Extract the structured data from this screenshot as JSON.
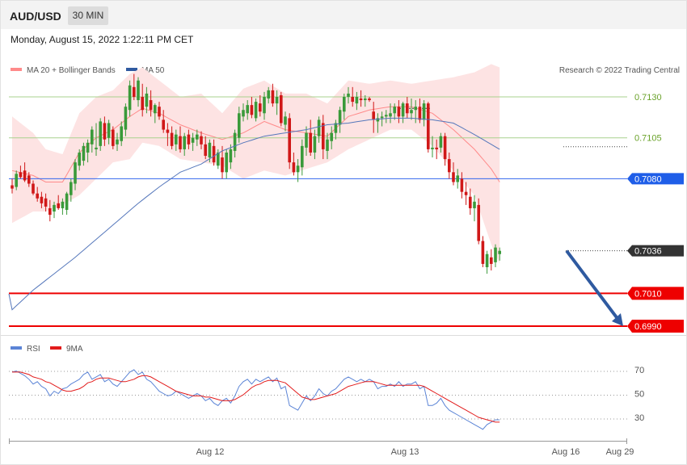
{
  "header": {
    "symbol": "AUD/USD",
    "timeframe": "30 MIN",
    "datetime": "Monday, August 15, 2022 1:22:11 PM CET"
  },
  "legend": {
    "bb": "MA 20 + Bollinger Bands",
    "ma50": "MA 50",
    "rsi": "RSI",
    "ma9": "9MA",
    "credit": "Research © 2022 Trading Central"
  },
  "colors": {
    "bb": "#ff8a8a",
    "bbfill": "#fde3e3",
    "ma50": "#5577bb",
    "up": "#3a9a3a",
    "down": "#d01818",
    "resistance": "#a9d18e",
    "pivot": "#3366ee",
    "support": "#ee0000",
    "arrow": "#2f5aa0",
    "rsi": "#5b84d6",
    "rsima": "#e21b1b"
  },
  "chart_data": {
    "type": "candlestick",
    "title": "AUD/USD 30 MIN",
    "x_ticks": [
      "Aug 12",
      "Aug 13",
      "Aug 16",
      "Aug 29"
    ],
    "y_range": [
      6979,
      7157
    ],
    "levels": [
      {
        "value": 0.713,
        "label": "0.7130",
        "kind": "resistance"
      },
      {
        "value": 0.7105,
        "label": "0.7105",
        "kind": "resistance"
      },
      {
        "value": 0.708,
        "label": "0.7080",
        "kind": "pivot"
      },
      {
        "value": 0.7036,
        "label": "0.7036",
        "kind": "last"
      },
      {
        "value": 0.701,
        "label": "0.7010",
        "kind": "support"
      },
      {
        "value": 0.699,
        "label": "0.6990",
        "kind": "support"
      }
    ],
    "forecast": {
      "from": 0.7036,
      "to": 0.699
    },
    "ohlc": [
      [
        7076,
        7080,
        7071,
        7074
      ],
      [
        7075,
        7085,
        7073,
        7083
      ],
      [
        7084,
        7088,
        7080,
        7081
      ],
      [
        7085,
        7090,
        7078,
        7079
      ],
      [
        7082,
        7084,
        7075,
        7077
      ],
      [
        7077,
        7079,
        7070,
        7071
      ],
      [
        7071,
        7075,
        7066,
        7068
      ],
      [
        7069,
        7072,
        7062,
        7065
      ],
      [
        7068,
        7071,
        7060,
        7063
      ],
      [
        7062,
        7067,
        7054,
        7058
      ],
      [
        7060,
        7066,
        7056,
        7064
      ],
      [
        7065,
        7070,
        7061,
        7062
      ],
      [
        7062,
        7068,
        7058,
        7066
      ],
      [
        7061,
        7072,
        7058,
        7071
      ],
      [
        7070,
        7080,
        7066,
        7078
      ],
      [
        7077,
        7092,
        7073,
        7090
      ],
      [
        7088,
        7098,
        7085,
        7096
      ],
      [
        7091,
        7102,
        7088,
        7100
      ],
      [
        7096,
        7104,
        7090,
        7102
      ],
      [
        7101,
        7112,
        7096,
        7110
      ],
      [
        7098,
        7114,
        7094,
        7099
      ],
      [
        7100,
        7117,
        7097,
        7115
      ],
      [
        7114,
        7118,
        7100,
        7104
      ],
      [
        7105,
        7116,
        7101,
        7114
      ],
      [
        7110,
        7112,
        7098,
        7100
      ],
      [
        7101,
        7108,
        7097,
        7104
      ],
      [
        7103,
        7115,
        7100,
        7112
      ],
      [
        7110,
        7126,
        7106,
        7124
      ],
      [
        7122,
        7140,
        7118,
        7137
      ],
      [
        7136,
        7144,
        7128,
        7130
      ],
      [
        7128,
        7142,
        7124,
        7140
      ],
      [
        7130,
        7138,
        7118,
        7122
      ],
      [
        7124,
        7136,
        7120,
        7132
      ],
      [
        7128,
        7134,
        7118,
        7122
      ],
      [
        7120,
        7126,
        7114,
        7125
      ],
      [
        7124,
        7127,
        7116,
        7118
      ],
      [
        7116,
        7122,
        7108,
        7110
      ],
      [
        7110,
        7114,
        7100,
        7108
      ],
      [
        7108,
        7112,
        7098,
        7100
      ],
      [
        7101,
        7110,
        7097,
        7107
      ],
      [
        7106,
        7112,
        7096,
        7098
      ],
      [
        7098,
        7108,
        7094,
        7106
      ],
      [
        7107,
        7110,
        7098,
        7101
      ],
      [
        7102,
        7108,
        7097,
        7105
      ],
      [
        7104,
        7110,
        7100,
        7107
      ],
      [
        7106,
        7109,
        7098,
        7101
      ],
      [
        7101,
        7106,
        7092,
        7094
      ],
      [
        7093,
        7104,
        7090,
        7102
      ],
      [
        7100,
        7104,
        7088,
        7090
      ],
      [
        7088,
        7098,
        7086,
        7096
      ],
      [
        7093,
        7100,
        7080,
        7084
      ],
      [
        7084,
        7098,
        7080,
        7096
      ],
      [
        7090,
        7101,
        7086,
        7098
      ],
      [
        7097,
        7110,
        7093,
        7108
      ],
      [
        7105,
        7124,
        7102,
        7120
      ],
      [
        7118,
        7126,
        7115,
        7122
      ],
      [
        7120,
        7128,
        7116,
        7125
      ],
      [
        7125,
        7130,
        7117,
        7119
      ],
      [
        7117,
        7129,
        7115,
        7127
      ],
      [
        7126,
        7131,
        7118,
        7121
      ],
      [
        7120,
        7133,
        7116,
        7130
      ],
      [
        7129,
        7136,
        7126,
        7134
      ],
      [
        7134,
        7138,
        7124,
        7126
      ],
      [
        7126,
        7134,
        7119,
        7130
      ],
      [
        7131,
        7133,
        7112,
        7114
      ],
      [
        7113,
        7121,
        7109,
        7118
      ],
      [
        7117,
        7120,
        7086,
        7090
      ],
      [
        7090,
        7096,
        7082,
        7084
      ],
      [
        7084,
        7092,
        7078,
        7088
      ],
      [
        7087,
        7104,
        7082,
        7100
      ],
      [
        7099,
        7112,
        7094,
        7108
      ],
      [
        7108,
        7116,
        7094,
        7096
      ],
      [
        7096,
        7110,
        7092,
        7106
      ],
      [
        7106,
        7118,
        7102,
        7116
      ],
      [
        7114,
        7119,
        7092,
        7098
      ],
      [
        7097,
        7108,
        7092,
        7104
      ],
      [
        7103,
        7112,
        7098,
        7108
      ],
      [
        7108,
        7116,
        7104,
        7114
      ],
      [
        7113,
        7124,
        7108,
        7122
      ],
      [
        7121,
        7132,
        7116,
        7130
      ],
      [
        7130,
        7136,
        7126,
        7132
      ],
      [
        7130,
        7136,
        7124,
        7127
      ],
      [
        7126,
        7133,
        7122,
        7130
      ],
      [
        7129,
        7134,
        7124,
        7128
      ],
      [
        7128,
        7131,
        7124,
        7129
      ],
      [
        7129,
        7130,
        7127,
        7128
      ],
      [
        7121,
        7127,
        7108,
        7116
      ],
      [
        7115,
        7120,
        7108,
        7117
      ],
      [
        7117,
        7121,
        7112,
        7118
      ],
      [
        7118,
        7122,
        7114,
        7119
      ],
      [
        7118,
        7126,
        7114,
        7120
      ],
      [
        7120,
        7126,
        7116,
        7124
      ],
      [
        7124,
        7128,
        7114,
        7118
      ],
      [
        7118,
        7127,
        7114,
        7126
      ],
      [
        7126,
        7130,
        7117,
        7120
      ],
      [
        7120,
        7129,
        7116,
        7122
      ],
      [
        7122,
        7128,
        7114,
        7124
      ],
      [
        7124,
        7129,
        7114,
        7116
      ],
      [
        7116,
        7128,
        7112,
        7126
      ],
      [
        7126,
        7127,
        7096,
        7098
      ],
      [
        7098,
        7106,
        7093,
        7099
      ],
      [
        7099,
        7104,
        7092,
        7098
      ],
      [
        7099,
        7108,
        7096,
        7106
      ],
      [
        7106,
        7108,
        7088,
        7092
      ],
      [
        7092,
        7096,
        7080,
        7084
      ],
      [
        7084,
        7090,
        7076,
        7078
      ],
      [
        7078,
        7086,
        7074,
        7082
      ],
      [
        7080,
        7084,
        7068,
        7072
      ],
      [
        7072,
        7078,
        7064,
        7070
      ],
      [
        7069,
        7074,
        7058,
        7062
      ],
      [
        7062,
        7070,
        7054,
        7066
      ],
      [
        7064,
        7068,
        7040,
        7042
      ],
      [
        7042,
        7045,
        7026,
        7028
      ],
      [
        7026,
        7036,
        7022,
        7034
      ],
      [
        7032,
        7037,
        7024,
        7028
      ],
      [
        7029,
        7040,
        7026,
        7038
      ],
      [
        7034,
        7038,
        7030,
        7036
      ]
    ],
    "ma50_anchors": [
      [
        0,
        7000
      ],
      [
        5,
        7012
      ],
      [
        10,
        7022
      ],
      [
        15,
        7032
      ],
      [
        20,
        7043
      ],
      [
        25,
        7054
      ],
      [
        30,
        7065
      ],
      [
        35,
        7075
      ],
      [
        40,
        7084
      ],
      [
        45,
        7089
      ],
      [
        50,
        7097
      ],
      [
        55,
        7102
      ],
      [
        60,
        7106
      ],
      [
        65,
        7108
      ],
      [
        70,
        7110
      ],
      [
        75,
        7113
      ],
      [
        80,
        7114
      ],
      [
        85,
        7116
      ],
      [
        90,
        7117
      ],
      [
        95,
        7117
      ],
      [
        100,
        7116
      ],
      [
        105,
        7114
      ],
      [
        110,
        7107
      ],
      [
        116,
        7098
      ]
    ],
    "bb_upper_anchors": [
      [
        0,
        7118
      ],
      [
        5,
        7108
      ],
      [
        8,
        7098
      ],
      [
        12,
        7095
      ],
      [
        16,
        7120
      ],
      [
        20,
        7130
      ],
      [
        24,
        7134
      ],
      [
        28,
        7144
      ],
      [
        31,
        7148
      ],
      [
        35,
        7140
      ],
      [
        40,
        7130
      ],
      [
        45,
        7132
      ],
      [
        50,
        7120
      ],
      [
        55,
        7135
      ],
      [
        60,
        7140
      ],
      [
        65,
        7132
      ],
      [
        70,
        7132
      ],
      [
        75,
        7126
      ],
      [
        80,
        7140
      ],
      [
        85,
        7138
      ],
      [
        90,
        7140
      ],
      [
        95,
        7138
      ],
      [
        100,
        7140
      ],
      [
        105,
        7142
      ],
      [
        110,
        7145
      ],
      [
        114,
        7150
      ],
      [
        116,
        7148
      ]
    ],
    "bb_lower_anchors": [
      [
        0,
        7053
      ],
      [
        5,
        7060
      ],
      [
        8,
        7060
      ],
      [
        12,
        7064
      ],
      [
        16,
        7070
      ],
      [
        20,
        7080
      ],
      [
        24,
        7090
      ],
      [
        28,
        7092
      ],
      [
        31,
        7102
      ],
      [
        35,
        7100
      ],
      [
        40,
        7092
      ],
      [
        45,
        7090
      ],
      [
        50,
        7088
      ],
      [
        55,
        7080
      ],
      [
        60,
        7085
      ],
      [
        65,
        7082
      ],
      [
        70,
        7086
      ],
      [
        75,
        7090
      ],
      [
        80,
        7098
      ],
      [
        85,
        7104
      ],
      [
        90,
        7110
      ],
      [
        95,
        7110
      ],
      [
        100,
        7100
      ],
      [
        105,
        7085
      ],
      [
        110,
        7070
      ],
      [
        114,
        7040
      ],
      [
        116,
        7028
      ]
    ],
    "bb_mid_anchors": [
      [
        0,
        7085
      ],
      [
        5,
        7082
      ],
      [
        8,
        7078
      ],
      [
        12,
        7078
      ],
      [
        16,
        7096
      ],
      [
        20,
        7105
      ],
      [
        24,
        7110
      ],
      [
        28,
        7118
      ],
      [
        31,
        7123
      ],
      [
        35,
        7120
      ],
      [
        40,
        7113
      ],
      [
        45,
        7108
      ],
      [
        50,
        7104
      ],
      [
        55,
        7108
      ],
      [
        60,
        7115
      ],
      [
        65,
        7110
      ],
      [
        70,
        7108
      ],
      [
        75,
        7106
      ],
      [
        80,
        7118
      ],
      [
        85,
        7122
      ],
      [
        90,
        7124
      ],
      [
        95,
        7124
      ],
      [
        100,
        7120
      ],
      [
        105,
        7110
      ],
      [
        110,
        7098
      ],
      [
        114,
        7086
      ],
      [
        116,
        7078
      ]
    ],
    "rsi": {
      "ticks": [
        70,
        50,
        30
      ],
      "y_range": [
        17,
        76
      ],
      "values": [
        68,
        69,
        67,
        65,
        62,
        58,
        60,
        56,
        54,
        48,
        52,
        50,
        54,
        55,
        58,
        60,
        62,
        66,
        68,
        62,
        64,
        66,
        60,
        62,
        58,
        56,
        60,
        64,
        68,
        70,
        66,
        68,
        62,
        60,
        56,
        52,
        50,
        48,
        49,
        52,
        50,
        48,
        46,
        48,
        50,
        48,
        44,
        46,
        42,
        40,
        44,
        46,
        42,
        48,
        56,
        60,
        62,
        58,
        62,
        60,
        62,
        64,
        60,
        63,
        54,
        56,
        40,
        38,
        36,
        42,
        48,
        44,
        48,
        54,
        50,
        48,
        52,
        54,
        58,
        62,
        64,
        62,
        60,
        62,
        60,
        62,
        60,
        54,
        56,
        56,
        58,
        56,
        60,
        56,
        58,
        58,
        60,
        54,
        56,
        40,
        40,
        42,
        46,
        40,
        36,
        34,
        32,
        30,
        28,
        26,
        24,
        22,
        20,
        24,
        26,
        28,
        28
      ],
      "ma_values": [
        68,
        68,
        68,
        67,
        66,
        64,
        63,
        62,
        60,
        59,
        57,
        55,
        53,
        52,
        52,
        53,
        54,
        56,
        59,
        60,
        62,
        63,
        63,
        63,
        62,
        61,
        60,
        60,
        61,
        62,
        64,
        65,
        65,
        64,
        62,
        60,
        58,
        56,
        54,
        52,
        51,
        50,
        49,
        48,
        48,
        48,
        47,
        47,
        46,
        45,
        44,
        44,
        44,
        45,
        47,
        49,
        52,
        55,
        57,
        58,
        60,
        61,
        61,
        61,
        60,
        59,
        56,
        53,
        50,
        47,
        46,
        45,
        45,
        46,
        47,
        48,
        49,
        50,
        52,
        54,
        56,
        57,
        58,
        59,
        60,
        60,
        60,
        59,
        58,
        57,
        57,
        57,
        57,
        57,
        57,
        57,
        57,
        57,
        56,
        54,
        52,
        50,
        48,
        46,
        44,
        42,
        40,
        38,
        36,
        34,
        32,
        30,
        29,
        28,
        27,
        26,
        26
      ]
    }
  }
}
